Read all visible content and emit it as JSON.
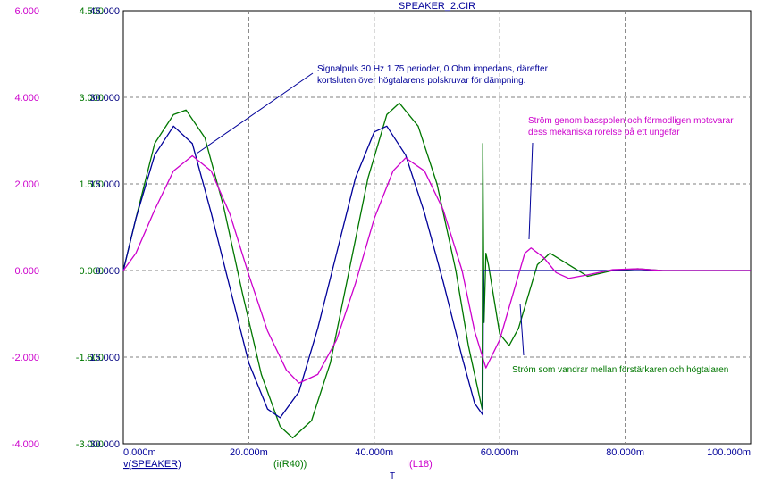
{
  "chart_data": {
    "type": "line",
    "title": "SPEAKER_2.CIR",
    "xlabel": "T",
    "x_tick_labels": [
      "0.000m",
      "20.000m",
      "40.000m",
      "60.000m",
      "80.000m",
      "100.000m"
    ],
    "xlim": [
      0,
      0.1
    ],
    "axes": [
      {
        "name": "magenta-axis",
        "color": "#cc00cc",
        "ylim": [
          -4,
          6
        ],
        "tick_labels": [
          "6.000",
          "4.000",
          "2.000",
          "0.000",
          "-2.000",
          "-4.000"
        ]
      },
      {
        "name": "green-axis",
        "color": "#007700",
        "ylim": [
          -3,
          4.5
        ],
        "tick_labels": [
          "4.500",
          "3.000",
          "1.500",
          "0.000",
          "-1.500",
          "-3.000"
        ]
      },
      {
        "name": "blue-axis",
        "color": "#000080",
        "ylim": [
          -30,
          45
        ],
        "tick_labels": [
          "45.000",
          "30.000",
          "15.000",
          "0.000",
          "-15.000",
          "-30.000"
        ]
      }
    ],
    "series": [
      {
        "name": "v(SPEAKER)",
        "color": "#000099",
        "axis": 2,
        "points": [
          [
            0,
            0
          ],
          [
            0.002,
            9
          ],
          [
            0.005,
            20
          ],
          [
            0.008,
            25
          ],
          [
            0.011,
            22
          ],
          [
            0.014,
            10
          ],
          [
            0.017,
            -3
          ],
          [
            0.02,
            -16
          ],
          [
            0.023,
            -24
          ],
          [
            0.025,
            -25.5
          ],
          [
            0.028,
            -21
          ],
          [
            0.031,
            -10
          ],
          [
            0.034,
            3
          ],
          [
            0.037,
            16
          ],
          [
            0.04,
            24
          ],
          [
            0.042,
            25
          ],
          [
            0.045,
            20
          ],
          [
            0.048,
            10
          ],
          [
            0.051,
            -2
          ],
          [
            0.054,
            -15
          ],
          [
            0.056,
            -23
          ],
          [
            0.0573,
            -25
          ],
          [
            0.0574,
            0
          ],
          [
            0.1,
            0
          ]
        ]
      },
      {
        "name": "(i(R40))",
        "color": "#007700",
        "axis": 1,
        "points": [
          [
            0,
            0
          ],
          [
            0.002,
            0.9
          ],
          [
            0.005,
            2.2
          ],
          [
            0.008,
            2.7
          ],
          [
            0.01,
            2.78
          ],
          [
            0.013,
            2.3
          ],
          [
            0.016,
            1.1
          ],
          [
            0.019,
            -0.4
          ],
          [
            0.022,
            -1.8
          ],
          [
            0.025,
            -2.7
          ],
          [
            0.027,
            -2.9
          ],
          [
            0.03,
            -2.6
          ],
          [
            0.033,
            -1.6
          ],
          [
            0.036,
            0
          ],
          [
            0.039,
            1.6
          ],
          [
            0.042,
            2.7
          ],
          [
            0.044,
            2.9
          ],
          [
            0.047,
            2.5
          ],
          [
            0.05,
            1.5
          ],
          [
            0.053,
            0
          ],
          [
            0.055,
            -1.3
          ],
          [
            0.0572,
            -2.4
          ],
          [
            0.0573,
            2.2
          ],
          [
            0.0575,
            -0.9
          ],
          [
            0.0578,
            0.3
          ],
          [
            0.0582,
            0.1
          ],
          [
            0.06,
            -1.1
          ],
          [
            0.0615,
            -1.3
          ],
          [
            0.063,
            -1.0
          ],
          [
            0.066,
            0.1
          ],
          [
            0.068,
            0.3
          ],
          [
            0.071,
            0.1
          ],
          [
            0.074,
            -0.1
          ],
          [
            0.078,
            0
          ],
          [
            0.082,
            0.03
          ],
          [
            0.086,
            0
          ],
          [
            0.1,
            0
          ]
        ]
      },
      {
        "name": "I(L18)",
        "color": "#cc00cc",
        "axis": 0,
        "points": [
          [
            0,
            0
          ],
          [
            0.002,
            0.4
          ],
          [
            0.005,
            1.4
          ],
          [
            0.008,
            2.3
          ],
          [
            0.011,
            2.65
          ],
          [
            0.014,
            2.3
          ],
          [
            0.017,
            1.3
          ],
          [
            0.02,
            -0.1
          ],
          [
            0.023,
            -1.4
          ],
          [
            0.026,
            -2.3
          ],
          [
            0.028,
            -2.6
          ],
          [
            0.031,
            -2.4
          ],
          [
            0.034,
            -1.6
          ],
          [
            0.037,
            -0.3
          ],
          [
            0.04,
            1.2
          ],
          [
            0.043,
            2.3
          ],
          [
            0.045,
            2.6
          ],
          [
            0.048,
            2.3
          ],
          [
            0.051,
            1.4
          ],
          [
            0.054,
            0
          ],
          [
            0.056,
            -1.4
          ],
          [
            0.0578,
            -2.25
          ],
          [
            0.06,
            -1.6
          ],
          [
            0.062,
            -0.6
          ],
          [
            0.064,
            0.4
          ],
          [
            0.065,
            0.52
          ],
          [
            0.067,
            0.3
          ],
          [
            0.069,
            -0.05
          ],
          [
            0.071,
            -0.18
          ],
          [
            0.074,
            -0.1
          ],
          [
            0.078,
            0.02
          ],
          [
            0.082,
            0.04
          ],
          [
            0.086,
            0
          ],
          [
            0.1,
            0
          ]
        ]
      }
    ],
    "annotations": [
      {
        "lines": [
          "Signalpuls 30 Hz 1.75 perioder, 0 Ohm impedans, därefter",
          "kortsluten över högtalarens polskruvar för dämpning."
        ],
        "color": "#000099"
      },
      {
        "lines": [
          "Ström genom basspolen och förmodligen motsvarar",
          "dess mekaniska rörelse på ett ungefär"
        ],
        "color": "#cc00cc"
      },
      {
        "lines": [
          "Ström som vandrar mellan förstärkaren och högtalaren"
        ],
        "color": "#007700"
      }
    ],
    "grid": true,
    "legend": "bottom"
  }
}
